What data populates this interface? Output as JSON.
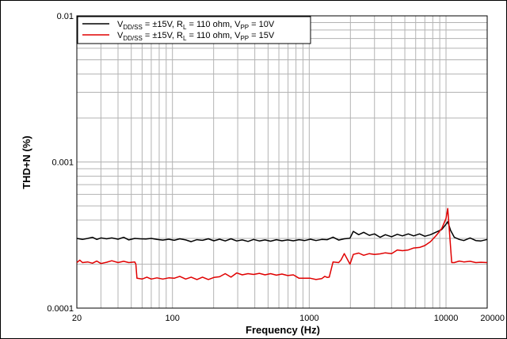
{
  "chart_data": {
    "type": "line",
    "xlabel": "Frequency (Hz)",
    "ylabel": "THD+N (%)",
    "x_scale": "log",
    "y_scale": "log",
    "xlim": [
      20,
      20000
    ],
    "ylim": [
      0.0001,
      0.01
    ],
    "x_tick_labels": [
      "20",
      "100",
      "1000",
      "10000",
      "20000"
    ],
    "y_tick_labels": [
      "0.0001",
      "0.001",
      "0.01"
    ],
    "grid": true,
    "legend_position": "top-left",
    "series": [
      {
        "name": "V_DD/SS = ±15V, R_L = 110 ohm, V_PP = 10V",
        "name_parts": {
          "v1": "V",
          "v1_sub": "DD/SS",
          "mid1": " = ±15V, R",
          "r_sub": "L",
          "mid2": " = 110 ohm, V",
          "v2_sub": "PP",
          "end": " = 10V"
        },
        "color": "#000000",
        "x": [
          20,
          22,
          24,
          26,
          28,
          30,
          33,
          36,
          40,
          44,
          48,
          53,
          58,
          64,
          70,
          77,
          85,
          94,
          103,
          113,
          125,
          137,
          151,
          166,
          183,
          201,
          221,
          243,
          268,
          295,
          324,
          357,
          392,
          432,
          475,
          522,
          575,
          632,
          696,
          765,
          842,
          926,
          1019,
          1121,
          1233,
          1356,
          1492,
          1641,
          1805,
          1986,
          2100,
          2300,
          2500,
          2750,
          3000,
          3300,
          3600,
          4000,
          4400,
          4800,
          5300,
          5800,
          6400,
          7000,
          7700,
          8500,
          9300,
          10000,
          10300,
          10800,
          11500,
          12500,
          13500,
          15000,
          16500,
          18000,
          20000
        ],
        "values": [
          0.0003,
          0.000295,
          0.0003,
          0.000305,
          0.000295,
          0.000302,
          0.000298,
          0.000302,
          0.000296,
          0.000305,
          0.000293,
          0.0003,
          0.000298,
          0.000297,
          0.0003,
          0.000295,
          0.000292,
          0.000296,
          0.000291,
          0.000298,
          0.000293,
          0.000285,
          0.000294,
          0.000291,
          0.000298,
          0.000289,
          0.000296,
          0.000288,
          0.000298,
          0.000288,
          0.000293,
          0.000286,
          0.000295,
          0.000288,
          0.000293,
          0.000287,
          0.000294,
          0.000289,
          0.000293,
          0.000289,
          0.000294,
          0.00029,
          0.000296,
          0.00029,
          0.000295,
          0.000294,
          0.000306,
          0.000292,
          0.000298,
          0.000301,
          0.000335,
          0.000318,
          0.00033,
          0.000315,
          0.000322,
          0.000305,
          0.000318,
          0.000308,
          0.00032,
          0.000312,
          0.000322,
          0.000312,
          0.000322,
          0.00031,
          0.000318,
          0.000332,
          0.000345,
          0.000375,
          0.00039,
          0.00034,
          0.000305,
          0.000295,
          0.00029,
          0.000302,
          0.00029,
          0.000288,
          0.000295
        ]
      },
      {
        "name": "V_DD/SS = ±15V, R_L = 110 ohm, V_PP = 15V",
        "name_parts": {
          "v1": "V",
          "v1_sub": "DD/SS",
          "mid1": " = ±15V, R",
          "r_sub": "L",
          "mid2": " = 110 ohm, V",
          "v2_sub": "PP",
          "end": " = 15V"
        },
        "color": "#e00000",
        "x": [
          20,
          21,
          22,
          24,
          26,
          28,
          30,
          33,
          36,
          40,
          44,
          48,
          53,
          54,
          55,
          60,
          65,
          70,
          77,
          85,
          94,
          103,
          113,
          125,
          137,
          151,
          166,
          183,
          201,
          221,
          243,
          268,
          295,
          324,
          357,
          392,
          432,
          475,
          522,
          575,
          632,
          696,
          765,
          842,
          926,
          1019,
          1121,
          1233,
          1300,
          1356,
          1400,
          1492,
          1641,
          1705,
          1805,
          1986,
          2100,
          2300,
          2500,
          2750,
          3000,
          3300,
          3600,
          4000,
          4400,
          4800,
          5300,
          5800,
          6400,
          7000,
          7700,
          8500,
          9300,
          10000,
          10300,
          11000,
          11500,
          12500,
          13500,
          15000,
          16500,
          18000,
          20000
        ],
        "values": [
          0.000205,
          0.000213,
          0.000205,
          0.000207,
          0.000203,
          0.00021,
          0.000202,
          0.000206,
          0.000211,
          0.000205,
          0.000209,
          0.000205,
          0.000207,
          0.0002,
          0.00016,
          0.000158,
          0.000163,
          0.000158,
          0.000161,
          0.000158,
          0.000161,
          0.00016,
          0.000165,
          0.000158,
          0.000163,
          0.000157,
          0.000163,
          0.000157,
          0.000162,
          0.000164,
          0.000172,
          0.000163,
          0.000174,
          0.000169,
          0.000172,
          0.00017,
          0.000173,
          0.000169,
          0.000172,
          0.000168,
          0.000171,
          0.000167,
          0.000169,
          0.00016,
          0.00016,
          0.00016,
          0.000157,
          0.000159,
          0.000165,
          0.000162,
          0.000163,
          0.000207,
          0.000205,
          0.000213,
          0.000236,
          0.0002,
          0.000233,
          0.000238,
          0.00023,
          0.000236,
          0.000233,
          0.000235,
          0.000239,
          0.000236,
          0.00025,
          0.000247,
          0.00025,
          0.000258,
          0.00026,
          0.000268,
          0.000285,
          0.000315,
          0.00035,
          0.00041,
          0.00048,
          0.000205,
          0.000205,
          0.00021,
          0.000207,
          0.000209,
          0.000205,
          0.000206,
          0.000205
        ]
      }
    ]
  }
}
